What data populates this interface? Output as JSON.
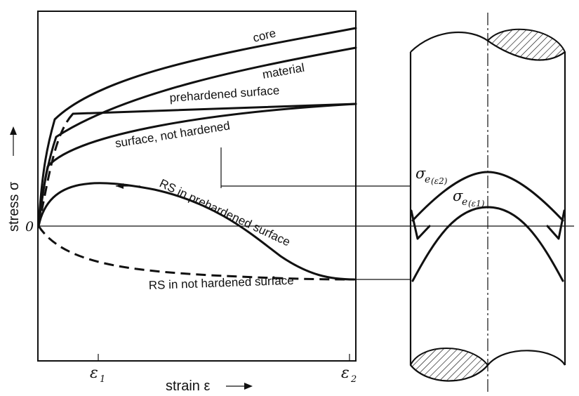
{
  "left_plot": {
    "y_axis_label": "stress σ",
    "x_axis_label": "strain ε",
    "origin_label": "0",
    "tick_e1": "ε",
    "tick_e1_sub": "1",
    "tick_e2": "ε",
    "tick_e2_sub": "2",
    "arrow_glyph": "→"
  },
  "curve_labels": {
    "core": "core",
    "material": "material",
    "prehardened": "prehardened surface",
    "not_hardened": "surface, not hardened",
    "rs_prehardened": "RS in prehardened surface",
    "rs_not_hardened": "RS in not hardened surface"
  },
  "cylinder": {
    "sigma_e2_main": "σ",
    "sigma_e2_sub": "e",
    "sigma_e2_paren": "(ε2)",
    "sigma_e1_main": "σ",
    "sigma_e1_sub": "e",
    "sigma_e1_paren": "(ε1)"
  }
}
